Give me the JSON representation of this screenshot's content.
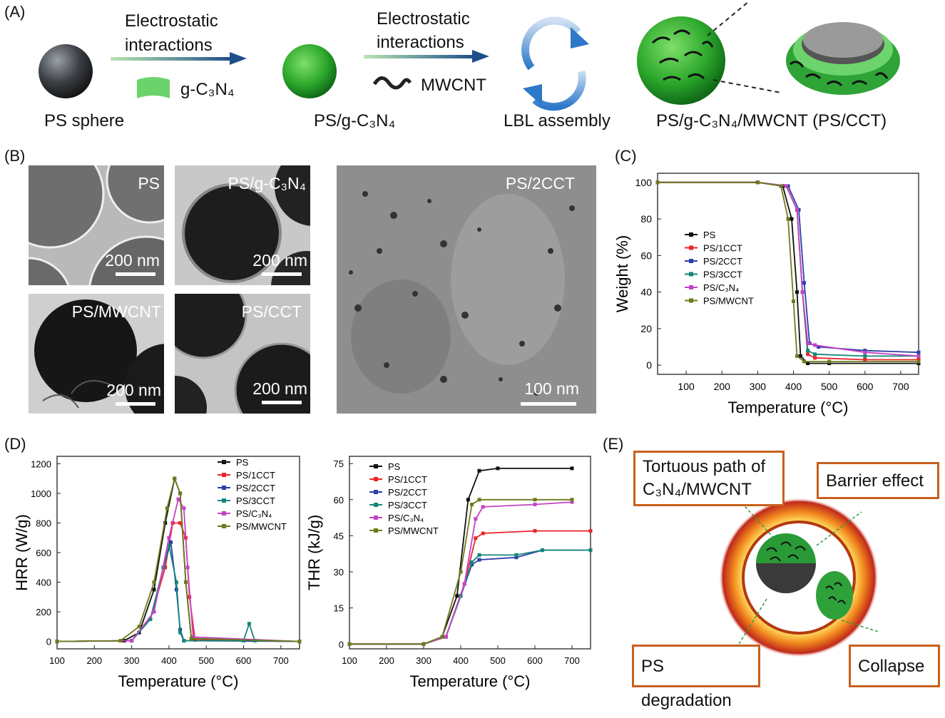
{
  "panels": {
    "A": "(A)",
    "B": "(B)",
    "C": "(C)",
    "D": "(D)",
    "E": "(E)"
  },
  "panel_a": {
    "arrow1_line1": "Electrostatic",
    "arrow1_line2": "interactions",
    "arrow2_line1": "Electrostatic",
    "arrow2_line2": "interactions",
    "gcn_label": "g-C₃N₄",
    "mwcnt_label": "MWCNT",
    "caption_ps": "PS sphere",
    "caption_psg": "PS/g-C₃N₄",
    "caption_lbl": "LBL assembly",
    "caption_final": "PS/g-C₃N₄/MWCNT  (PS/CCT)"
  },
  "panel_b": {
    "images": [
      {
        "label": "PS",
        "scale": "200 nm"
      },
      {
        "label": "PS/g-C₃N₄",
        "scale": "200 nm"
      },
      {
        "label": "PS/MWCNT",
        "scale": "200 nm"
      },
      {
        "label": "PS/CCT",
        "scale": "200 nm"
      },
      {
        "label": "PS/2CCT",
        "scale": "100 nm"
      }
    ]
  },
  "panel_e": {
    "box_tortuous_line1": "Tortuous path of",
    "box_tortuous_line2": "C₃N₄/MWCNT",
    "box_barrier": "Barrier effect",
    "box_degradation": "PS degradation",
    "box_collapse": "Collapse"
  },
  "colors": {
    "PS": "#111111",
    "PS/1CCT": "#e8262a",
    "PS/2CCT": "#2b3fa8",
    "PS/3CCT": "#14877a",
    "PS/C3N4": "#c443c4",
    "PS/MWCNT": "#6f7a1c",
    "frame": "#c8601c"
  },
  "chart_data": [
    {
      "type": "line",
      "panel": "C",
      "xlabel": "Temperature (°C)",
      "ylabel": "Weight (%)",
      "xlim": [
        20,
        750
      ],
      "ylim": [
        -5,
        105
      ],
      "xticks": [
        100,
        200,
        300,
        400,
        500,
        600,
        700
      ],
      "yticks": [
        0,
        20,
        40,
        60,
        80,
        100
      ],
      "legend": "middle-left",
      "series": [
        {
          "name": "PS",
          "color": "#111111",
          "x": [
            20,
            300,
            370,
            395,
            410,
            420,
            440,
            500,
            750
          ],
          "y": [
            100,
            100,
            98,
            80,
            40,
            5,
            1,
            1,
            1
          ]
        },
        {
          "name": "PS/1CCT",
          "color": "#e8262a",
          "x": [
            20,
            300,
            380,
            410,
            425,
            440,
            460,
            600,
            750
          ],
          "y": [
            100,
            100,
            98,
            85,
            40,
            6,
            4,
            3,
            3
          ]
        },
        {
          "name": "PS/2CCT",
          "color": "#2b3fa8",
          "x": [
            20,
            300,
            385,
            415,
            430,
            445,
            470,
            600,
            750
          ],
          "y": [
            100,
            100,
            98,
            85,
            45,
            12,
            10,
            8,
            7
          ]
        },
        {
          "name": "PS/3CCT",
          "color": "#14877a",
          "x": [
            20,
            300,
            380,
            410,
            425,
            440,
            460,
            600,
            750
          ],
          "y": [
            100,
            100,
            98,
            85,
            40,
            8,
            6,
            5,
            5
          ]
        },
        {
          "name": "PS/C₃N₄",
          "color": "#c443c4",
          "x": [
            20,
            300,
            380,
            410,
            425,
            440,
            460,
            600,
            750
          ],
          "y": [
            100,
            100,
            98,
            85,
            40,
            12,
            11,
            7,
            5
          ]
        },
        {
          "name": "PS/MWCNT",
          "color": "#6f7a1c",
          "x": [
            20,
            300,
            365,
            385,
            400,
            410,
            430,
            500,
            750
          ],
          "y": [
            100,
            100,
            98,
            80,
            35,
            5,
            2,
            2,
            2
          ]
        }
      ]
    },
    {
      "type": "line",
      "panel": "D-left",
      "xlabel": "Temperature (°C)",
      "ylabel": "HRR (W/g)",
      "xlim": [
        100,
        750
      ],
      "ylim": [
        -50,
        1250
      ],
      "xticks": [
        100,
        200,
        300,
        400,
        500,
        600,
        700
      ],
      "yticks": [
        0,
        200,
        400,
        600,
        800,
        1000,
        1200
      ],
      "legend": "top-right",
      "series": [
        {
          "name": "PS",
          "color": "#111111",
          "x": [
            100,
            280,
            320,
            360,
            390,
            415,
            430,
            445,
            460,
            750
          ],
          "y": [
            0,
            5,
            60,
            350,
            800,
            1100,
            1000,
            400,
            20,
            0
          ]
        },
        {
          "name": "PS/1CCT",
          "color": "#e8262a",
          "x": [
            100,
            300,
            350,
            390,
            410,
            430,
            445,
            455,
            470,
            750
          ],
          "y": [
            0,
            5,
            150,
            500,
            800,
            800,
            700,
            300,
            10,
            0
          ]
        },
        {
          "name": "PS/2CCT",
          "color": "#2b3fa8",
          "x": [
            100,
            300,
            350,
            385,
            405,
            420,
            430,
            440,
            750
          ],
          "y": [
            0,
            5,
            150,
            500,
            670,
            350,
            80,
            5,
            0
          ]
        },
        {
          "name": "PS/3CCT",
          "color": "#14877a",
          "x": [
            100,
            300,
            350,
            385,
            400,
            420,
            430,
            440,
            600,
            615,
            630,
            750
          ],
          "y": [
            0,
            5,
            150,
            500,
            650,
            400,
            60,
            5,
            5,
            120,
            5,
            0
          ]
        },
        {
          "name": "PS/C₃N₄",
          "color": "#c443c4",
          "x": [
            100,
            300,
            360,
            400,
            425,
            440,
            450,
            465,
            750
          ],
          "y": [
            0,
            5,
            200,
            700,
            960,
            900,
            500,
            30,
            0
          ]
        },
        {
          "name": "PS/MWCNT",
          "color": "#6f7a1c",
          "x": [
            100,
            270,
            320,
            360,
            395,
            415,
            430,
            445,
            460,
            750
          ],
          "y": [
            0,
            5,
            100,
            400,
            900,
            1100,
            1000,
            400,
            20,
            0
          ]
        }
      ]
    },
    {
      "type": "line",
      "panel": "D-right",
      "xlabel": "Temperature (°C)",
      "ylabel": "THR (kJ/g)",
      "xlim": [
        100,
        750
      ],
      "ylim": [
        -2,
        78
      ],
      "xticks": [
        100,
        200,
        300,
        400,
        500,
        600,
        700
      ],
      "yticks": [
        0,
        15,
        30,
        45,
        60,
        75
      ],
      "legend": "top-left",
      "series": [
        {
          "name": "PS",
          "color": "#111111",
          "x": [
            100,
            300,
            350,
            390,
            420,
            450,
            500,
            700
          ],
          "y": [
            0,
            0,
            3,
            20,
            60,
            72,
            73,
            73
          ]
        },
        {
          "name": "PS/1CCT",
          "color": "#e8262a",
          "x": [
            100,
            300,
            360,
            410,
            440,
            460,
            600,
            750
          ],
          "y": [
            0,
            0,
            3,
            25,
            44,
            46,
            47,
            47
          ]
        },
        {
          "name": "PS/2CCT",
          "color": "#2b3fa8",
          "x": [
            100,
            300,
            360,
            400,
            430,
            450,
            550,
            620,
            750
          ],
          "y": [
            0,
            0,
            3,
            20,
            33,
            35,
            36,
            39,
            39
          ]
        },
        {
          "name": "PS/3CCT",
          "color": "#14877a",
          "x": [
            100,
            300,
            360,
            400,
            430,
            450,
            550,
            620,
            750
          ],
          "y": [
            0,
            0,
            3,
            20,
            34,
            37,
            37,
            39,
            39
          ]
        },
        {
          "name": "PS/C₃N₄",
          "color": "#c443c4",
          "x": [
            100,
            300,
            360,
            410,
            440,
            460,
            600,
            700
          ],
          "y": [
            0,
            0,
            3,
            25,
            52,
            57,
            58,
            59
          ]
        },
        {
          "name": "PS/MWCNT",
          "color": "#6f7a1c",
          "x": [
            100,
            300,
            350,
            400,
            430,
            450,
            600,
            700
          ],
          "y": [
            0,
            0,
            3,
            30,
            58,
            60,
            60,
            60
          ]
        }
      ]
    }
  ]
}
